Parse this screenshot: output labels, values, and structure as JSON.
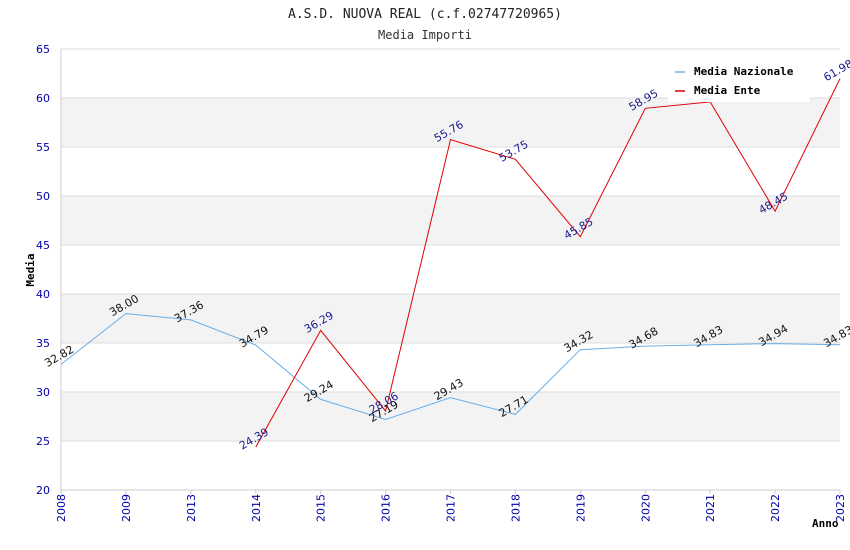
{
  "chart_data": {
    "type": "line",
    "title": "A.S.D. NUOVA REAL (c.f.02747720965)",
    "subtitle": "Media Importi",
    "xlabel": "Anno",
    "ylabel": "Media",
    "categories": [
      "2008",
      "2009",
      "2013",
      "2014",
      "2015",
      "2016",
      "2017",
      "2018",
      "2019",
      "2020",
      "2021",
      "2022",
      "2023"
    ],
    "ylim": [
      20,
      65
    ],
    "yticks": [
      20,
      25,
      30,
      35,
      40,
      45,
      50,
      55,
      60,
      65
    ],
    "ytick_labels": [
      "20",
      "25",
      "30",
      "35",
      "40",
      "45",
      "50",
      "55",
      "60",
      "65"
    ],
    "series": [
      {
        "name": "Media Nazionale",
        "color": "#6aaee8",
        "values": [
          32.82,
          38.0,
          37.36,
          34.79,
          29.24,
          27.19,
          29.43,
          27.71,
          34.32,
          34.68,
          34.83,
          34.94,
          34.83
        ],
        "labels": [
          "32.82",
          "38.00",
          "37.36",
          "34.79",
          "29.24",
          "27.19",
          "29.43",
          "27.71",
          "34.32",
          "34.68",
          "34.83",
          "34.94",
          "34.83"
        ]
      },
      {
        "name": "Media Ente",
        "color": "#e00000",
        "values": [
          null,
          null,
          null,
          24.39,
          36.29,
          28.06,
          55.76,
          53.75,
          45.85,
          58.95,
          59.6,
          48.45,
          61.98
        ],
        "labels": [
          null,
          null,
          null,
          "24.39",
          "36.29",
          "28.06",
          "55.76",
          "53.75",
          "45.85",
          "58.95",
          null,
          "48.45",
          "61.98"
        ]
      }
    ],
    "legend_position": "top-right",
    "grid": true
  }
}
